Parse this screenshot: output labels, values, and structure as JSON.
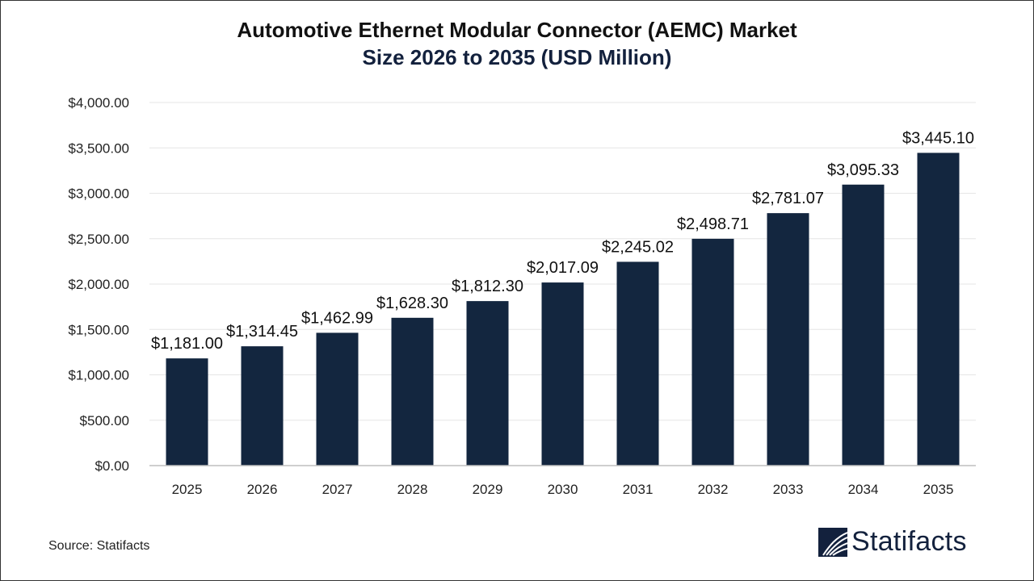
{
  "chart_data": {
    "type": "bar",
    "title": "Automotive Ethernet Modular Connector (AEMC) Market",
    "subtitle": "Size 2026 to 2035 (USD Million)",
    "categories": [
      "2025",
      "2026",
      "2027",
      "2028",
      "2029",
      "2030",
      "2031",
      "2032",
      "2033",
      "2034",
      "2035"
    ],
    "values": [
      1181.0,
      1314.45,
      1462.99,
      1628.3,
      1812.3,
      2017.09,
      2245.02,
      2498.71,
      2781.07,
      3095.33,
      3445.1
    ],
    "data_labels": [
      "$1,181.00",
      "$1,314.45",
      "$1,462.99",
      "$1,628.30",
      "$1,812.30",
      "$2,017.09",
      "$2,245.02",
      "$2,498.71",
      "$2,781.07",
      "$3,095.33",
      "$3,445.10"
    ],
    "yticks": [
      0,
      500,
      1000,
      1500,
      2000,
      2500,
      3000,
      3500,
      4000
    ],
    "ytick_labels": [
      "$0.00",
      "$500.00",
      "$1,000.00",
      "$1,500.00",
      "$2,000.00",
      "$2,500.00",
      "$3,000.00",
      "$3,500.00",
      "$4,000.00"
    ],
    "ylim": [
      0,
      4000
    ],
    "xlabel": "",
    "ylabel": "",
    "grid": true,
    "bar_color": "#13263f"
  },
  "source": "Source: Statifacts",
  "logo": {
    "text": "Statifacts",
    "color": "#13213d"
  }
}
